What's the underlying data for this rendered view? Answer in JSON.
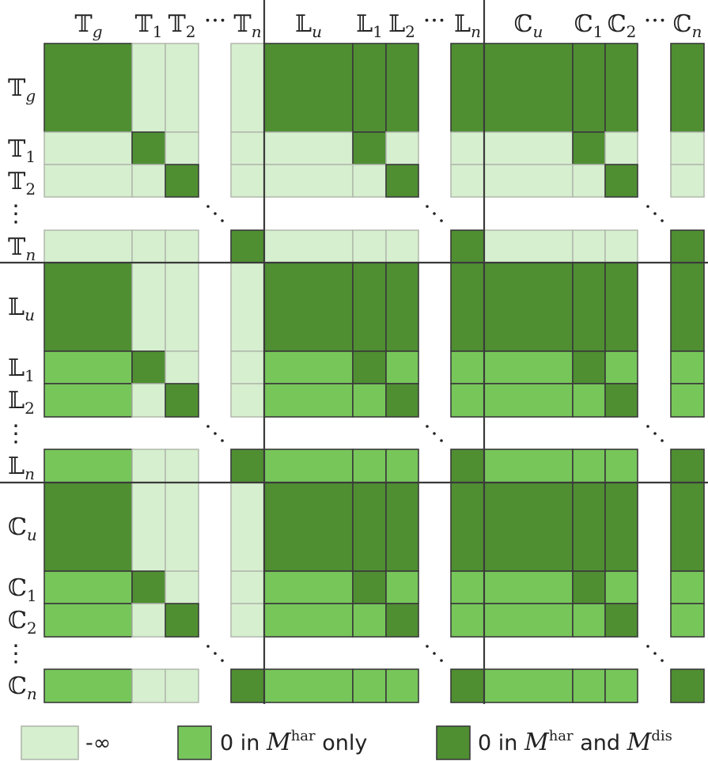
{
  "col_headers": [
    {
      "base": "𝕋",
      "sub": "g",
      "italic": true
    },
    {
      "base": "𝕋",
      "sub": "1",
      "italic": false
    },
    {
      "base": "𝕋",
      "sub": "2",
      "italic": false
    },
    {
      "base": "···",
      "sub": "",
      "italic": false
    },
    {
      "base": "𝕋",
      "sub": "n",
      "italic": true
    },
    {
      "base": "𝕃",
      "sub": "u",
      "italic": true
    },
    {
      "base": "𝕃",
      "sub": "1",
      "italic": false
    },
    {
      "base": "𝕃",
      "sub": "2",
      "italic": false
    },
    {
      "base": "···",
      "sub": "",
      "italic": false
    },
    {
      "base": "𝕃",
      "sub": "n",
      "italic": true
    },
    {
      "base": "ℂ",
      "sub": "u",
      "italic": true
    },
    {
      "base": "ℂ",
      "sub": "1",
      "italic": false
    },
    {
      "base": "ℂ",
      "sub": "2",
      "italic": false
    },
    {
      "base": "···",
      "sub": "",
      "italic": false
    },
    {
      "base": "ℂ",
      "sub": "n",
      "italic": true
    }
  ],
  "row_headers": [
    {
      "base": "𝕋",
      "sub": "g",
      "italic": true
    },
    {
      "base": "𝕋",
      "sub": "1",
      "italic": false
    },
    {
      "base": "𝕋",
      "sub": "2",
      "italic": false
    },
    {
      "base": "⋮",
      "sub": "",
      "italic": false
    },
    {
      "base": "𝕋",
      "sub": "n",
      "italic": true
    },
    {
      "base": "𝕃",
      "sub": "u",
      "italic": true
    },
    {
      "base": "𝕃",
      "sub": "1",
      "italic": false
    },
    {
      "base": "𝕃",
      "sub": "2",
      "italic": false
    },
    {
      "base": "⋮",
      "sub": "",
      "italic": false
    },
    {
      "base": "𝕃",
      "sub": "n",
      "italic": true
    },
    {
      "base": "ℂ",
      "sub": "u",
      "italic": true
    },
    {
      "base": "ℂ",
      "sub": "1",
      "italic": false
    },
    {
      "base": "ℂ",
      "sub": "2",
      "italic": false
    },
    {
      "base": "⋮",
      "sub": "",
      "italic": false
    },
    {
      "base": "ℂ",
      "sub": "n",
      "italic": true
    }
  ],
  "colors": {
    "neg_inf": "#d6efcf",
    "har_only": "#77c65a",
    "har_and_dis": "#4f8f32",
    "cell_border": "#b0b8ac",
    "cell_border_dark": "#3a3a3a",
    "divider": "#3a3a3a"
  },
  "legend": [
    {
      "key": "neg_inf",
      "text": "-∞",
      "sup": ""
    },
    {
      "key": "har_only",
      "text": "0 in ",
      "math": "M",
      "sup": "har",
      "tail": " only"
    },
    {
      "key": "har_and_dis",
      "text": "0 in ",
      "math": "M",
      "sup": "har",
      "tail": " and ",
      "math2": "M",
      "sup2": "dis"
    }
  ]
}
